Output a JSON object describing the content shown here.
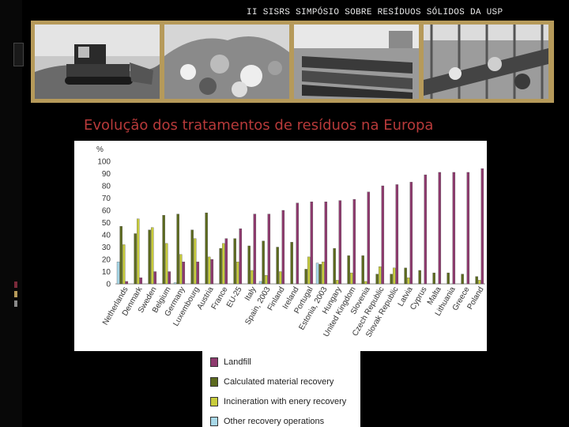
{
  "header": {
    "title": "II SISRS SIMPÓSIO SOBRE RESÍDUOS SÓLIDOS  DA USP"
  },
  "slide": {
    "title": "Evolução dos tratamentos de resíduos na Europa"
  },
  "photos": [
    "bulldozer-photo",
    "waste-pile-photo",
    "containers-photo",
    "sorting-facility-photo"
  ],
  "colors": {
    "landfill": "#8e3a6e",
    "material_recovery": "#5c6a1e",
    "incineration": "#c8cc3c",
    "other": "#a8d8e8",
    "title": "#b83a3a",
    "band": "#b69a5a"
  },
  "chart_data": {
    "type": "bar",
    "ylabel": "%",
    "ylim": [
      0,
      100
    ],
    "yticks": [
      0,
      10,
      20,
      30,
      40,
      50,
      60,
      70,
      80,
      90,
      100
    ],
    "grid": false,
    "legend_position": "bottom",
    "categories": [
      "Netherlands",
      "Denmark",
      "Sweden",
      "Belgium",
      "Germany",
      "Luxembourg",
      "Austria",
      "France",
      "EU-25",
      "Italy",
      "Spain, 2003",
      "Finland",
      "Ireland",
      "Portugal",
      "Estonia, 2003",
      "Hungary",
      "United Kingdom",
      "Slovenia",
      "Czech Republic",
      "Slovak Republic",
      "Latvia",
      "Cyprus",
      "Malta",
      "Lithuania",
      "Greece",
      "Poland"
    ],
    "series": [
      {
        "name": "Landfill",
        "values": [
          2,
          5,
          10,
          10,
          18,
          18,
          20,
          37,
          45,
          57,
          57,
          60,
          66,
          67,
          67,
          68,
          69,
          75,
          80,
          81,
          83,
          89,
          91,
          91,
          91,
          94
        ]
      },
      {
        "name": "Calculated material recovery",
        "values": [
          47,
          41,
          44,
          56,
          57,
          44,
          58,
          29,
          37,
          31,
          35,
          30,
          34,
          12,
          16,
          29,
          23,
          23,
          8,
          8,
          13,
          11,
          9,
          9,
          8,
          6
        ]
      },
      {
        "name": "Incineration with enery recovery",
        "values": [
          32,
          53,
          46,
          33,
          24,
          37,
          22,
          33,
          18,
          11,
          7,
          10,
          0,
          22,
          18,
          3,
          9,
          2,
          14,
          13,
          5,
          0,
          0,
          0,
          0,
          3
        ]
      },
      {
        "name": "Other recovery operations",
        "values": [
          18,
          0,
          0,
          0,
          1,
          0,
          0,
          0,
          0,
          0,
          2,
          0,
          0,
          0,
          17,
          0,
          0,
          0,
          0,
          0,
          0,
          0,
          0,
          0,
          0,
          0
        ]
      }
    ]
  }
}
